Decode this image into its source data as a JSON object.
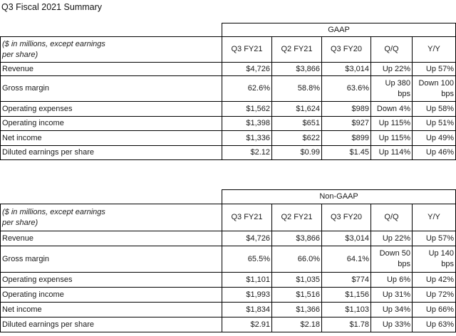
{
  "title": "Q3 Fiscal 2021 Summary",
  "tables": [
    {
      "section_label": "GAAP",
      "header_label": "($ in millions, except earnings per share)",
      "columns": [
        "Q3 FY21",
        "Q2 FY21",
        "Q3 FY20",
        "Q/Q",
        "Y/Y"
      ],
      "rows": [
        {
          "label": "Revenue",
          "values": [
            "$4,726",
            "$3,866",
            "$3,014",
            "Up 22%",
            "Up 57%"
          ]
        },
        {
          "label": "Gross margin",
          "values": [
            "62.6%",
            "58.8%",
            "63.6%",
            "Up 380 bps",
            "Down 100 bps"
          ]
        },
        {
          "label": "Operating expenses",
          "values": [
            "$1,562",
            "$1,624",
            "$989",
            "Down 4%",
            "Up 58%"
          ]
        },
        {
          "label": "Operating income",
          "values": [
            "$1,398",
            "$651",
            "$927",
            "Up 115%",
            "Up 51%"
          ]
        },
        {
          "label": "Net income",
          "values": [
            "$1,336",
            "$622",
            "$899",
            "Up 115%",
            "Up 49%"
          ]
        },
        {
          "label": "Diluted earnings per share",
          "values": [
            "$2.12",
            "$0.99",
            "$1.45",
            "Up 114%",
            "Up 46%"
          ]
        }
      ]
    },
    {
      "section_label": "Non-GAAP",
      "header_label": "($ in millions, except earnings per share)",
      "columns": [
        "Q3 FY21",
        "Q2 FY21",
        "Q3 FY20",
        "Q/Q",
        "Y/Y"
      ],
      "rows": [
        {
          "label": "Revenue",
          "values": [
            "$4,726",
            "$3,866",
            "$3,014",
            "Up 22%",
            "Up 57%"
          ]
        },
        {
          "label": "Gross margin",
          "values": [
            "65.5%",
            "66.0%",
            "64.1%",
            "Down 50 bps",
            "Up 140 bps"
          ]
        },
        {
          "label": "Operating expenses",
          "values": [
            "$1,101",
            "$1,035",
            "$774",
            "Up 6%",
            "Up 42%"
          ]
        },
        {
          "label": "Operating income",
          "values": [
            "$1,993",
            "$1,516",
            "$1,156",
            "Up 31%",
            "Up 72%"
          ]
        },
        {
          "label": "Net income",
          "values": [
            "$1,834",
            "$1,366",
            "$1,103",
            "Up 34%",
            "Up 66%"
          ]
        },
        {
          "label": "Diluted earnings per share",
          "values": [
            "$2.91",
            "$2.18",
            "$1.78",
            "Up 33%",
            "Up 63%"
          ]
        }
      ]
    }
  ]
}
